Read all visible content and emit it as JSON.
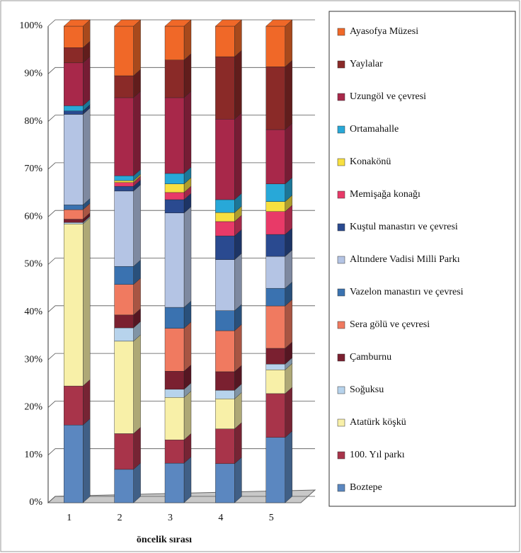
{
  "chart_data": {
    "type": "stacked_bar_3d",
    "categories": [
      "1",
      "2",
      "3",
      "4",
      "5"
    ],
    "x_label": "öncelik sırası",
    "ylim": [
      0,
      100
    ],
    "yticks": [
      {
        "value": 0,
        "label": "0%"
      },
      {
        "value": 10,
        "label": "10%"
      },
      {
        "value": 20,
        "label": "20%"
      },
      {
        "value": 30,
        "label": "30%"
      },
      {
        "value": 40,
        "label": "40%"
      },
      {
        "value": 50,
        "label": "50%"
      },
      {
        "value": 60,
        "label": "60%"
      },
      {
        "value": 70,
        "label": "70%"
      },
      {
        "value": 80,
        "label": "80%"
      },
      {
        "value": 90,
        "label": "90%"
      },
      {
        "value": 100,
        "label": "100%"
      }
    ],
    "grid": true,
    "legend": "right",
    "series": [
      {
        "name": "Boztepe",
        "color": "#5b87c0",
        "values": [
          16.3,
          7,
          8.3,
          8.2,
          13.7
        ]
      },
      {
        "name": "100. Yıl parkı",
        "color": "#a8344a",
        "values": [
          8.2,
          7.5,
          4.9,
          7.3,
          9.2
        ]
      },
      {
        "name": "Atatürk köşkü",
        "color": "#f8f0a8",
        "values": [
          34,
          19.4,
          8.9,
          6.3,
          5
        ]
      },
      {
        "name": "Soğuksu",
        "color": "#b7d3ec",
        "values": [
          0.3,
          2.8,
          1.7,
          1.8,
          1.2
        ]
      },
      {
        "name": "Çamburnu",
        "color": "#7a2030",
        "values": [
          0.7,
          2.7,
          3.8,
          3.9,
          3.3
        ]
      },
      {
        "name": "Sera gölü ve çevresi",
        "color": "#f07a60",
        "values": [
          2,
          6.4,
          9,
          8.6,
          8.9
        ]
      },
      {
        "name": "Vazelon manastırı ve çevresi",
        "color": "#3a72b0",
        "values": [
          1,
          3.8,
          4.4,
          4.2,
          3.7
        ]
      },
      {
        "name": "Altındere Vadisi Milli Parkı",
        "color": "#b4c4e4",
        "values": [
          19,
          15.8,
          19.8,
          10.7,
          6.7
        ]
      },
      {
        "name": "Kuştul manastırı ve çevresi",
        "color": "#2a4a90",
        "values": [
          0.7,
          1,
          2.8,
          5,
          4.6
        ]
      },
      {
        "name": "Memişağa konağı",
        "color": "#e83a68",
        "values": [
          0,
          0.8,
          1.5,
          3,
          4.8
        ]
      },
      {
        "name": "Konakönü",
        "color": "#f8e040",
        "values": [
          0,
          0.4,
          1.8,
          1.9,
          2.1
        ]
      },
      {
        "name": "Ortamahalle",
        "color": "#28a8d8",
        "values": [
          1.1,
          1,
          2.2,
          2.7,
          3.7
        ]
      },
      {
        "name": "Uzungöl ve çevresi",
        "color": "#a8284a",
        "values": [
          9,
          16.4,
          15.9,
          16.9,
          11.4
        ]
      },
      {
        "name": "Yaylalar",
        "color": "#8a2a28",
        "values": [
          3.2,
          4.6,
          7.9,
          13.1,
          13.2
        ]
      },
      {
        "name": "Ayasofya Müzesi",
        "color": "#f06828",
        "values": [
          4.5,
          10.4,
          7.1,
          6.4,
          8.5
        ]
      }
    ]
  }
}
